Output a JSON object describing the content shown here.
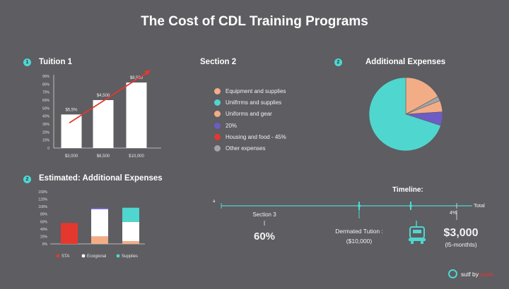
{
  "title": "The Cost of CDL Training Programs",
  "colors": {
    "teal": "#4fd6cf",
    "peach": "#f3ad86",
    "purple": "#6e5bc4",
    "red": "#e4382e",
    "gray": "#a4a4a6",
    "white": "#ffffff"
  },
  "sections": {
    "tuition": {
      "num": "1",
      "label": "Tuition 1"
    },
    "section2": {
      "label": "Section 2"
    },
    "additional": {
      "num": "2",
      "label": "Additional Expenses"
    },
    "estimated": {
      "num": "2",
      "label": "Estimated: Additional Expenses"
    }
  },
  "legend": [
    {
      "label": "Equipment and supplies",
      "color": "#f3ad86"
    },
    {
      "label": "Uniifrrms and supplies",
      "color": "#4fd6cf"
    },
    {
      "label": "Uniforms and gear",
      "color": "#f3ad86"
    },
    {
      "label": "20%",
      "color": "#6e5bc4"
    },
    {
      "label": "Housing and food - 45%",
      "color": "#e4382e"
    },
    {
      "label": "Other expenses",
      "color": "#a4a4a6"
    }
  ],
  "timeline": {
    "title": "Timeline:",
    "start_label": "a",
    "end_label": "Total",
    "tick_label": "4%",
    "section3": "Section 3",
    "pct": "60%",
    "dermated_line1": "Dermated Tution :",
    "dermated_line2": "($10,000)",
    "amount": "$3,000",
    "amount_sub": "(l5-monthts)"
  },
  "brand": {
    "text": "sutf by ",
    "accent": "oooto"
  },
  "chart_data": [
    {
      "type": "bar",
      "title": "Tuition 1",
      "categories": [
        "$3,000",
        "$6,500",
        "$10,000"
      ],
      "values": [
        42,
        60,
        82
      ],
      "data_labels": [
        "$5,5%",
        "$4,500",
        "$8,500"
      ],
      "yticks": [
        "0",
        "10%",
        "20%",
        "30%",
        "40%",
        "50%",
        "60%",
        "70%",
        "80%",
        "90%"
      ],
      "ylim": [
        0,
        90
      ],
      "trend_line": true
    },
    {
      "type": "pie",
      "title": "Additional Expenses",
      "slices": [
        {
          "value": 17,
          "color": "#f3ad86"
        },
        {
          "value": 2,
          "color": "#a4a4a6"
        },
        {
          "value": 5,
          "color": "#f3ad86"
        },
        {
          "value": 6,
          "color": "#6e5bc4"
        },
        {
          "value": 70,
          "color": "#4fd6cf"
        }
      ]
    },
    {
      "type": "bar",
      "stacked": true,
      "title": "Estimated: Additional Expenses",
      "ylim": [
        0,
        150
      ],
      "yticks": [
        "0%",
        "20%",
        "40%",
        "60%",
        "80%",
        "100%",
        "120%",
        "150%"
      ],
      "series": [
        {
          "name": "STA",
          "color": "#e4382e",
          "values": [
            60,
            0,
            0
          ]
        },
        {
          "name": "Ecxigional",
          "color": "#ffffff",
          "values": [
            0,
            100,
            55
          ]
        },
        {
          "name": "Supplies",
          "color": "#4fd6cf",
          "values": [
            0,
            0,
            45
          ]
        }
      ],
      "extra_segments": [
        {
          "bar": 1,
          "bottom": 0,
          "top": 22,
          "color": "#f3ad86"
        },
        {
          "bar": 1,
          "bottom": 100,
          "top": 104,
          "color": "#6e5bc4"
        },
        {
          "bar": 2,
          "bottom": 0,
          "top": 8,
          "color": "#f3ad86"
        },
        {
          "bar": 2,
          "bottom": 8,
          "top": 63,
          "color": "#ffffff"
        },
        {
          "bar": 2,
          "bottom": 63,
          "top": 104,
          "color": "#4fd6cf"
        }
      ]
    }
  ]
}
